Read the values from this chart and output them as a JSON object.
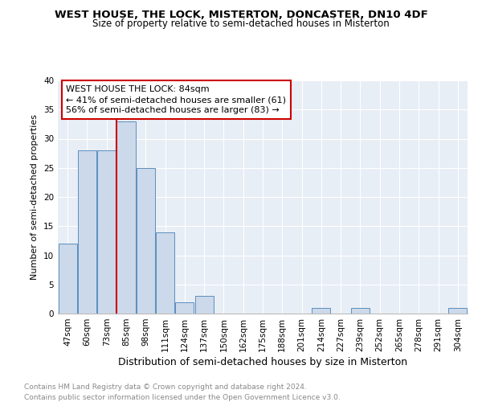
{
  "title": "WEST HOUSE, THE LOCK, MISTERTON, DONCASTER, DN10 4DF",
  "subtitle": "Size of property relative to semi-detached houses in Misterton",
  "xlabel": "Distribution of semi-detached houses by size in Misterton",
  "ylabel": "Number of semi-detached properties",
  "categories": [
    "47sqm",
    "60sqm",
    "73sqm",
    "85sqm",
    "98sqm",
    "111sqm",
    "124sqm",
    "137sqm",
    "150sqm",
    "162sqm",
    "175sqm",
    "188sqm",
    "201sqm",
    "214sqm",
    "227sqm",
    "239sqm",
    "252sqm",
    "265sqm",
    "278sqm",
    "291sqm",
    "304sqm"
  ],
  "values": [
    12,
    28,
    28,
    33,
    25,
    14,
    2,
    3,
    0,
    0,
    0,
    0,
    0,
    1,
    0,
    1,
    0,
    0,
    0,
    0,
    1
  ],
  "bar_color": "#ccd9ea",
  "bar_edge_color": "#5b8fbe",
  "property_line_index": 3,
  "property_label": "WEST HOUSE THE LOCK: 84sqm",
  "annotation_line1": "← 41% of semi-detached houses are smaller (61)",
  "annotation_line2": "56% of semi-detached houses are larger (83) →",
  "annotation_box_color": "#ffffff",
  "annotation_box_edge_color": "#cc0000",
  "property_line_color": "#cc0000",
  "ylim": [
    0,
    40
  ],
  "yticks": [
    0,
    5,
    10,
    15,
    20,
    25,
    30,
    35,
    40
  ],
  "background_color": "#ffffff",
  "plot_bg_color": "#e8eef5",
  "grid_color": "#ffffff",
  "footer_line1": "Contains HM Land Registry data © Crown copyright and database right 2024.",
  "footer_line2": "Contains public sector information licensed under the Open Government Licence v3.0.",
  "title_fontsize": 9.5,
  "subtitle_fontsize": 8.5,
  "xlabel_fontsize": 9,
  "ylabel_fontsize": 8,
  "tick_fontsize": 7.5,
  "footer_fontsize": 6.5,
  "annotation_fontsize": 8
}
